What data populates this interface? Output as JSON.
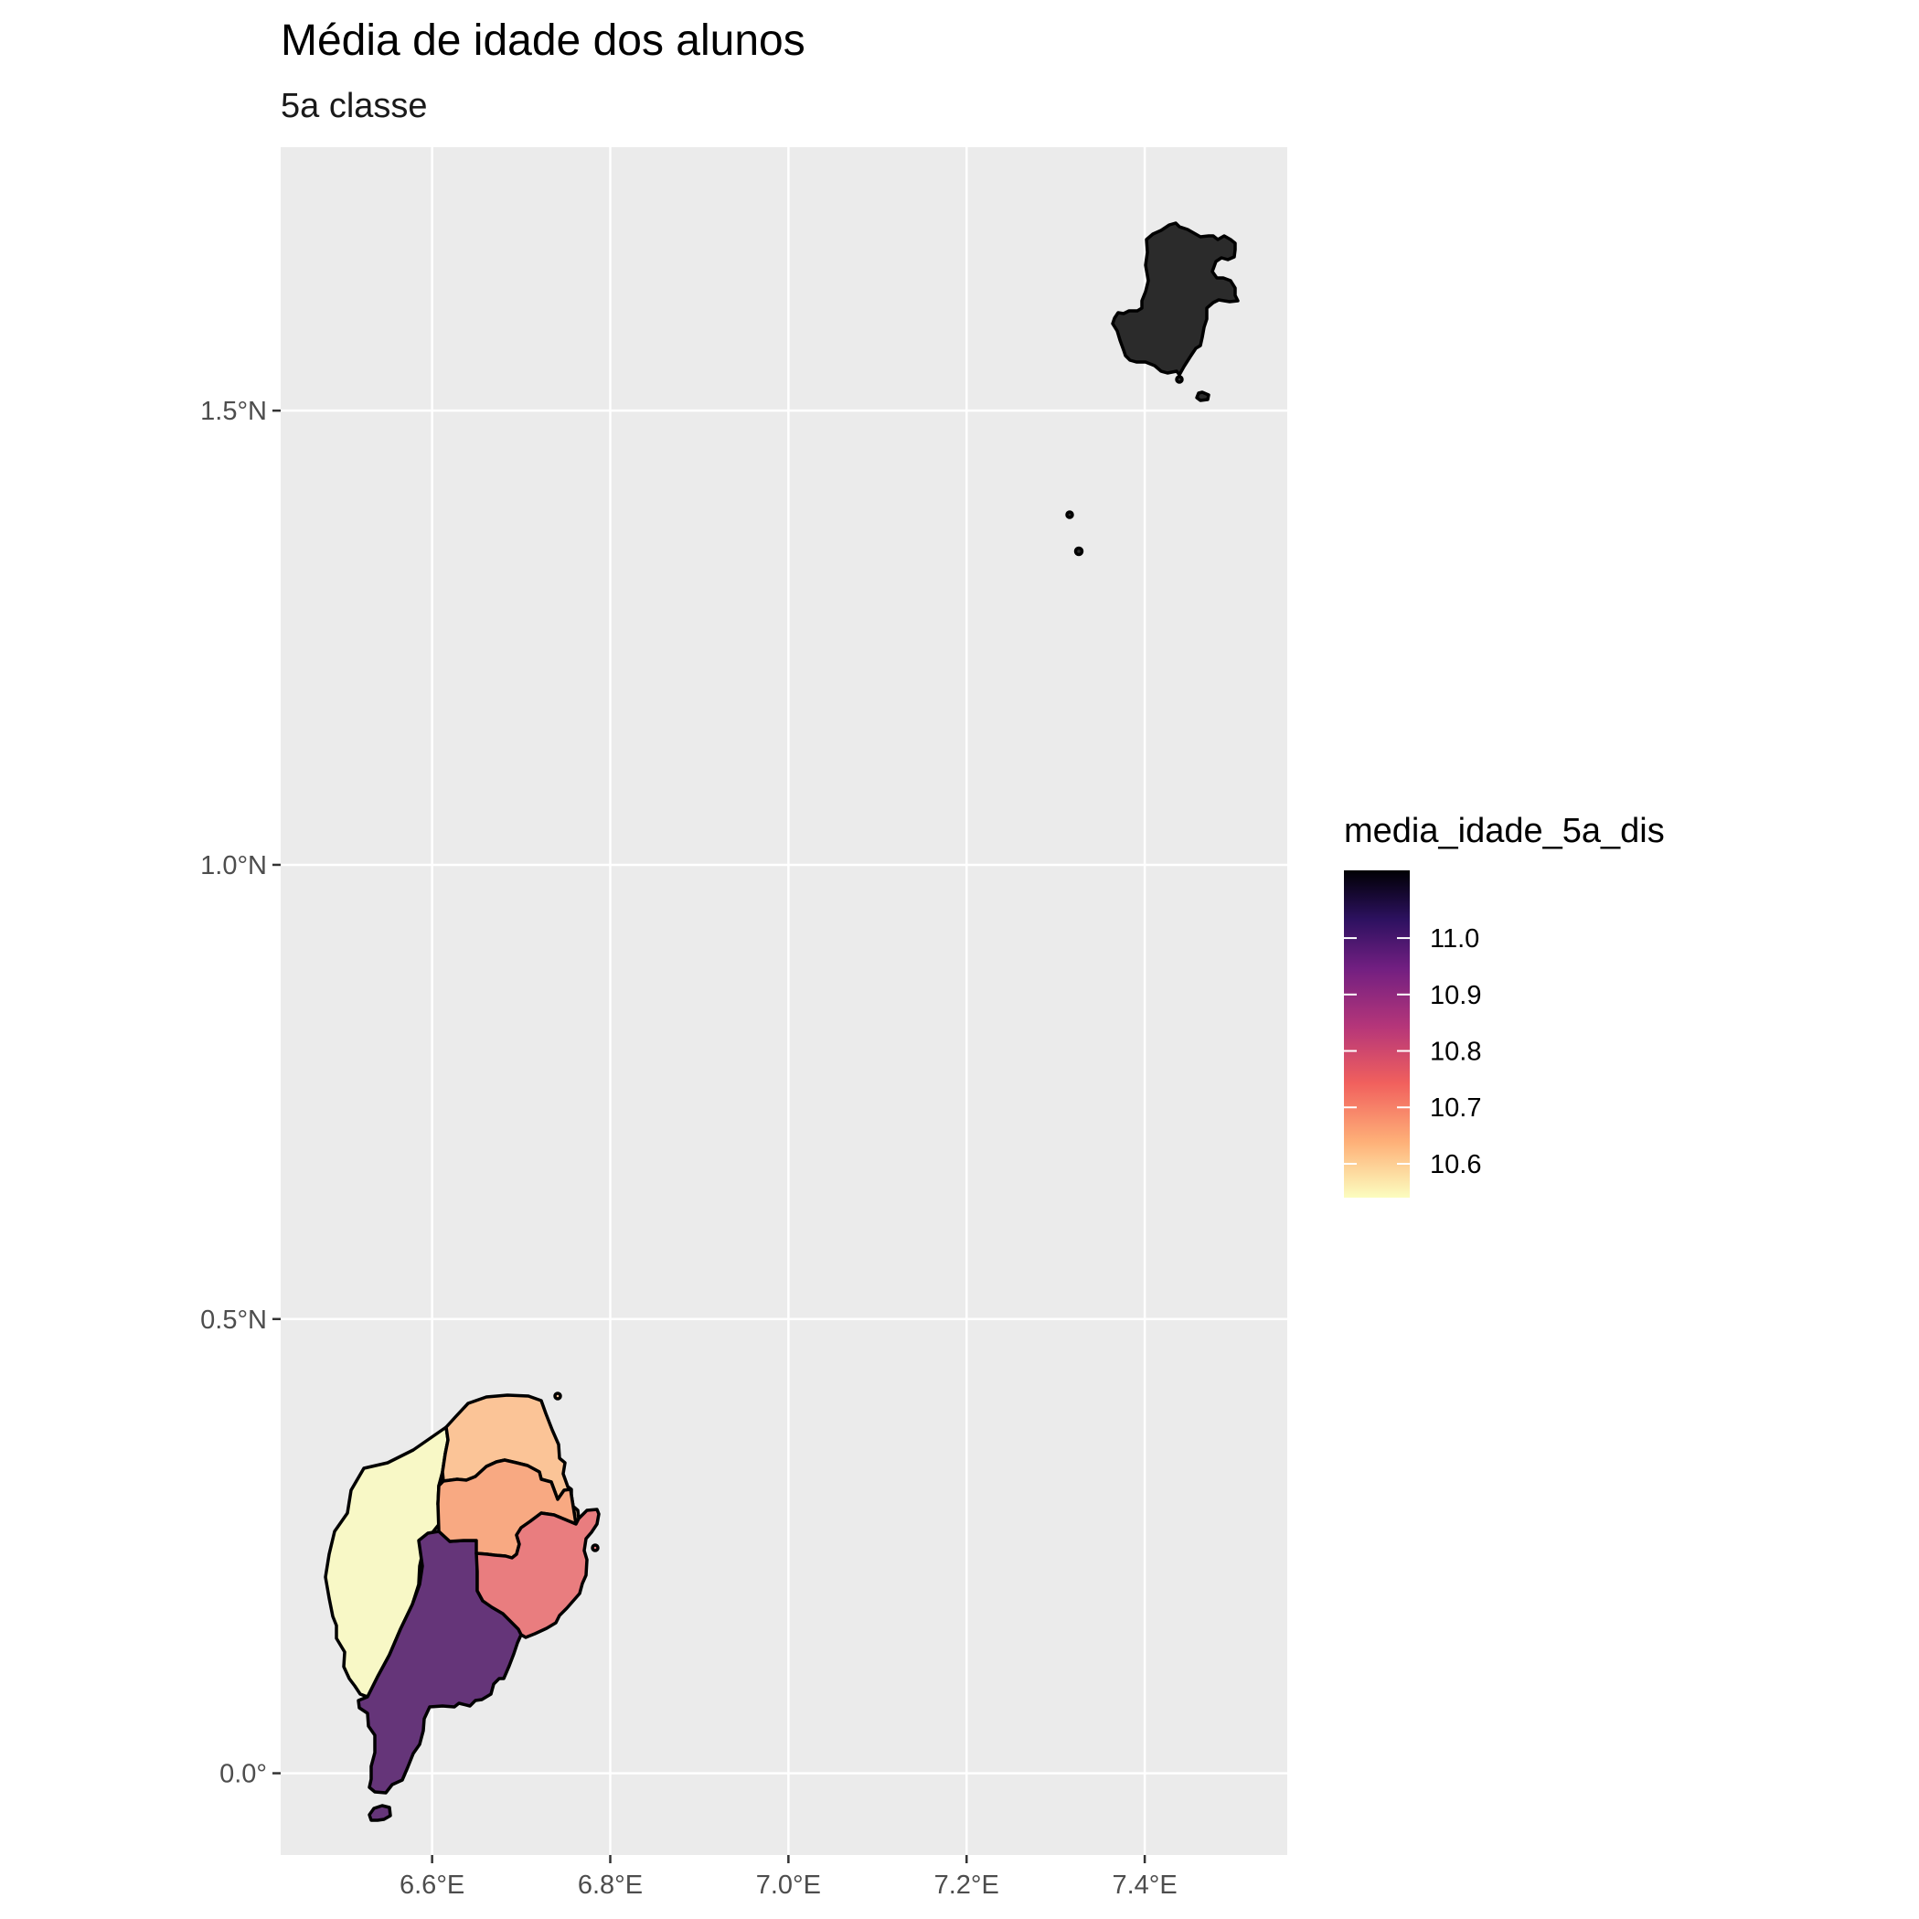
{
  "title": "Média de idade dos alunos",
  "subtitle": "5a classe",
  "chart_data": {
    "type": "choropleth-map",
    "x_axis": {
      "range": [
        6.43,
        7.56
      ],
      "ticks": [
        6.6,
        6.8,
        7.0,
        7.2,
        7.4
      ],
      "tick_labels": [
        "6.6°E",
        "6.8°E",
        "7.0°E",
        "7.2°E",
        "7.4°E"
      ]
    },
    "y_axis": {
      "range": [
        -0.09,
        1.79
      ],
      "ticks": [
        0.0,
        0.5,
        1.0,
        1.5
      ],
      "tick_labels": [
        "0.0°",
        "0.5°N",
        "1.0°N",
        "1.5°N"
      ]
    },
    "grid": true,
    "legend": {
      "title": "media_idade_5a_dis",
      "placement": "right",
      "range": [
        10.54,
        11.12
      ],
      "ticks": [
        10.6,
        10.7,
        10.8,
        10.9,
        11.0
      ],
      "tick_labels": [
        "10.6",
        "10.7",
        "10.8",
        "10.9",
        "11.0"
      ],
      "palette": [
        "#fcfdbf",
        "#feb078",
        "#f1605d",
        "#b63679",
        "#721f81",
        "#2d1160",
        "#000004"
      ]
    },
    "regions": [
      {
        "id": "lemba",
        "value": 10.54,
        "fill": "#f8f8c6"
      },
      {
        "id": "lobata",
        "value": 10.63,
        "fill": "#fbc497"
      },
      {
        "id": "mezochi",
        "value": 10.65,
        "fill": "#f8a982"
      },
      {
        "id": "cantagalo",
        "value": 10.74,
        "fill": "#e97d7f"
      },
      {
        "id": "caue",
        "value": 10.97,
        "fill": "#653579"
      },
      {
        "id": "principe",
        "value": 11.12,
        "fill": "#2b2b2b"
      }
    ]
  }
}
